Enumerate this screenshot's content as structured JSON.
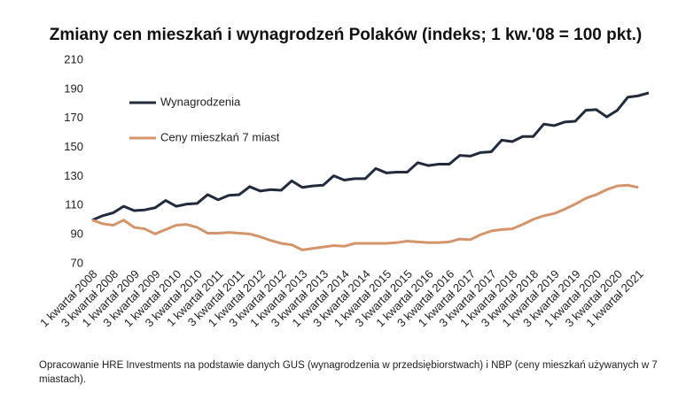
{
  "chart_data": {
    "type": "line",
    "title": "Zmiany cen mieszkań i wynagrodzeń Polaków (indeks; 1 kw.'08 = 100 pkt.)",
    "note": "Opracowanie HRE Investments na podstawie danych GUS (wynagrodzenia w przedsiębiorstwach) i NBP (ceny mieszkań używanych w 7 miastach).",
    "categories": [
      "1 kwartał 2008",
      null,
      "3 kwartał 2008",
      null,
      "1 kwartał 2009",
      null,
      "3 kwartał 2009",
      null,
      "1 kwartał 2010",
      null,
      "3 kwartał 2010",
      null,
      "1 kwartał 2011",
      null,
      "3 kwartał 2011",
      null,
      "1 kwartał 2012",
      null,
      "3 kwartał 2012",
      null,
      "1 kwartał 2013",
      null,
      "3 kwartał 2013",
      null,
      "1 kwartał 2014",
      null,
      "3 kwartał 2014",
      null,
      "1 kwartał 2015",
      null,
      "3 kwartał 2015",
      null,
      "1 kwartał 2016",
      null,
      "3 kwartał 2016",
      null,
      "1 kwartał 2017",
      null,
      "3 kwartał 2017",
      null,
      "1 kwartał 2018",
      null,
      "3 kwartał 2018",
      null,
      "1 kwartał 2019",
      null,
      "3 kwartał 2019",
      null,
      "1 kwartał 2020",
      null,
      "3 kwartał 2020",
      null,
      "1 kwartał 2021",
      null
    ],
    "series": [
      {
        "name": "Wynagrodzenia",
        "color": "#222a3c",
        "values": [
          100,
          103,
          105,
          109.5,
          106.5,
          107,
          108.5,
          113.5,
          109.5,
          111,
          111.5,
          117.5,
          114,
          117,
          117.5,
          123,
          120,
          121,
          120.5,
          127,
          122.5,
          123.5,
          124,
          130.5,
          127.5,
          128.5,
          128.5,
          135.5,
          132.5,
          133,
          133,
          139.5,
          137.5,
          138.5,
          138.5,
          144.5,
          144,
          146.5,
          147,
          155,
          154,
          157.5,
          157.5,
          166,
          165,
          167.5,
          168,
          175.5,
          176,
          171,
          175.5,
          184.5,
          185.5,
          187.5
        ]
      },
      {
        "name": "Ceny mieszkań 7 miast",
        "color": "#d4956b",
        "values": [
          100,
          97.5,
          96.5,
          100,
          95,
          94,
          90.5,
          93.5,
          96.5,
          97,
          95,
          91,
          91,
          91.5,
          91,
          90.5,
          88.5,
          86,
          84,
          83,
          79.5,
          80.5,
          81.5,
          82.5,
          82,
          84,
          84,
          84,
          84,
          84.5,
          85.5,
          85,
          84.5,
          84.5,
          85,
          87,
          86.5,
          90,
          92.5,
          93.5,
          94,
          97,
          100.5,
          103,
          104.5,
          107.5,
          111,
          115,
          117.5,
          121,
          123.5,
          124,
          122.5,
          null
        ]
      }
    ],
    "ylim": [
      70,
      210
    ],
    "yticks": [
      70,
      90,
      110,
      130,
      150,
      170,
      190,
      210
    ],
    "grid": false,
    "legend": "upper left"
  }
}
